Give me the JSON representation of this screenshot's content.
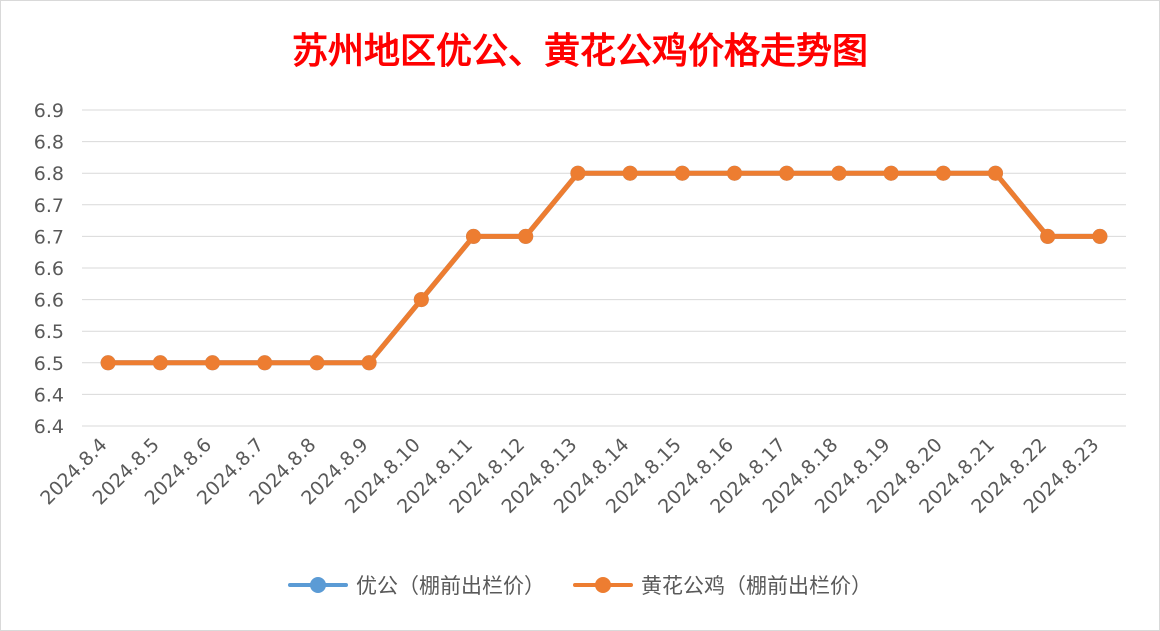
{
  "chart_data": {
    "type": "line",
    "title": "苏州地区优公、黄花公鸡价格走势图",
    "x": [
      "2024.8.4",
      "2024.8.5",
      "2024.8.6",
      "2024.8.7",
      "2024.8.8",
      "2024.8.9",
      "2024.8.10",
      "2024.8.11",
      "2024.8.12",
      "2024.8.13",
      "2024.8.14",
      "2024.8.15",
      "2024.8.16",
      "2024.8.17",
      "2024.8.18",
      "2024.8.19",
      "2024.8.20",
      "2024.8.21",
      "2024.8.22",
      "2024.8.23"
    ],
    "y_tick_labels": [
      "6.9",
      "6.8",
      "6.8",
      "6.7",
      "6.7",
      "6.6",
      "6.6",
      "6.5",
      "6.5",
      "6.4",
      "6.4"
    ],
    "ylim": [
      6.4,
      6.9
    ],
    "grid": true,
    "legend_position": "bottom",
    "series": [
      {
        "name": "优公（棚前出栏价）",
        "color": "#5b9bd5",
        "values": [
          6.5,
          6.5,
          6.5,
          6.5,
          6.5,
          6.5,
          6.6,
          6.7,
          6.7,
          6.8,
          6.8,
          6.8,
          6.8,
          6.8,
          6.8,
          6.8,
          6.8,
          6.8,
          6.7,
          6.7
        ]
      },
      {
        "name": "黄花公鸡（棚前出栏价）",
        "color": "#ed7d31",
        "values": [
          6.5,
          6.5,
          6.5,
          6.5,
          6.5,
          6.5,
          6.6,
          6.7,
          6.7,
          6.8,
          6.8,
          6.8,
          6.8,
          6.8,
          6.8,
          6.8,
          6.8,
          6.8,
          6.7,
          6.7
        ]
      }
    ]
  }
}
